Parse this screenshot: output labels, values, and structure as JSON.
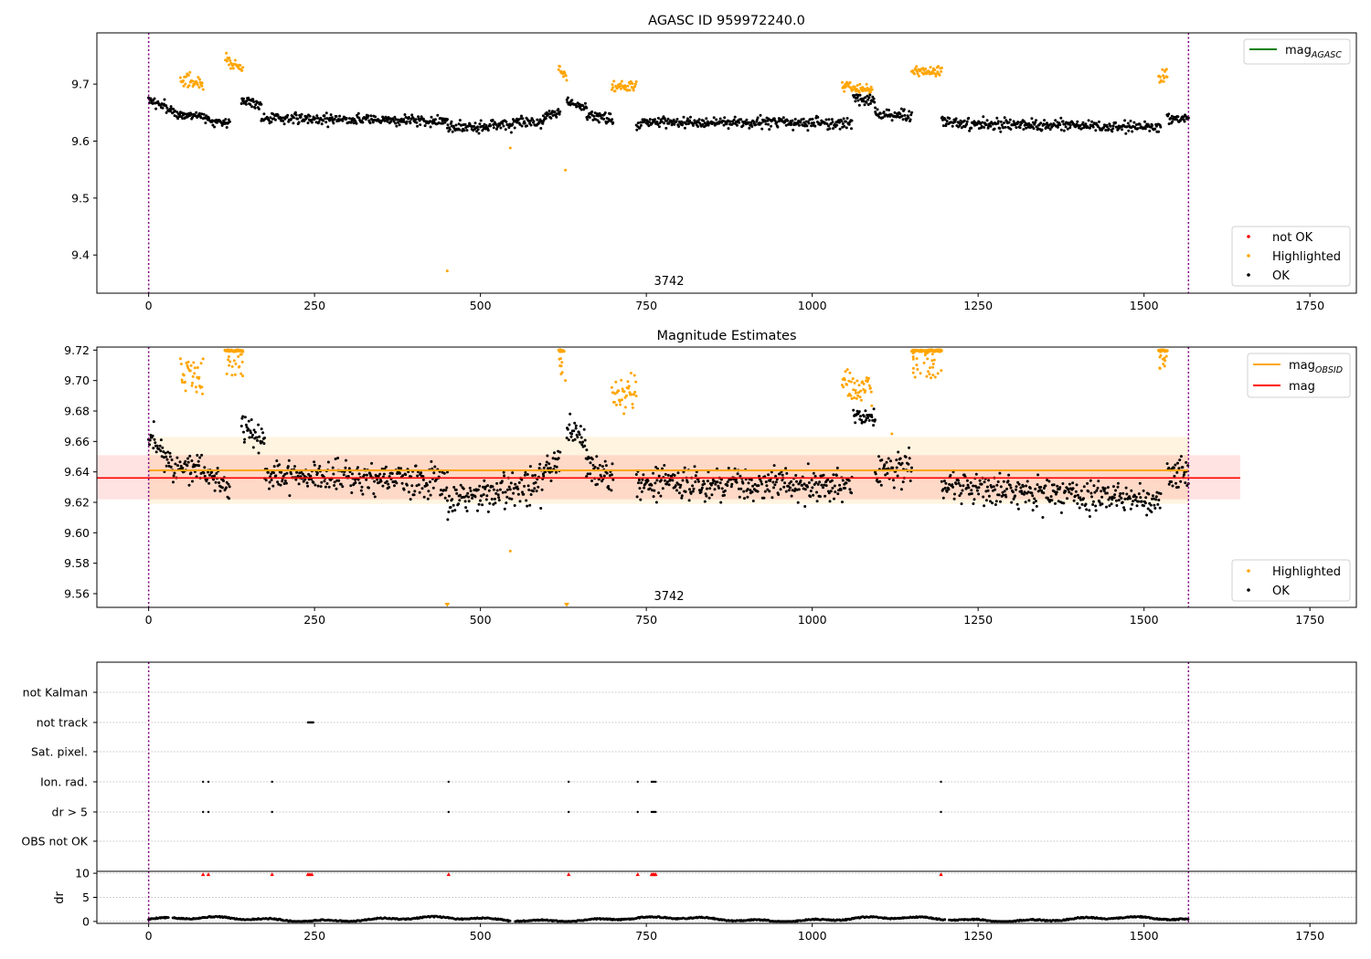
{
  "figure": {
    "colors": {
      "ok": "#000000",
      "highlighted": "#ffa500",
      "not_ok": "#ff0000",
      "agasc": "#008000",
      "obsid": "#ffa500",
      "mag": "#ff0000",
      "obsid_marker": "#800080"
    }
  },
  "chart_data": [
    {
      "id": "agasc_panel",
      "type": "scatter",
      "title": "AGASC ID 959972240.0",
      "xlim": [
        -78,
        1820
      ],
      "ylim": [
        9.333,
        9.79
      ],
      "x_ticks": [
        0,
        250,
        500,
        750,
        1000,
        1250,
        1500,
        1750
      ],
      "y_ticks": [
        9.4,
        9.5,
        9.6,
        9.7
      ],
      "obsid_label": "3742",
      "obsid_bounds": [
        0,
        1567
      ],
      "legend_top": {
        "position": "top-right",
        "entries": [
          {
            "label": "mag",
            "subscript": "AGASC"
          }
        ]
      },
      "legend_bottom": {
        "position": "bottom-right",
        "entries": [
          {
            "label": "not OK"
          },
          {
            "label": "Highlighted"
          },
          {
            "label": "OK"
          }
        ]
      },
      "segments": [
        {
          "x": [
            0,
            40
          ],
          "mean": 9.662,
          "trend": -0.02,
          "noise": 0.009,
          "status": "ok"
        },
        {
          "x": [
            42,
            80
          ],
          "mean": 9.645,
          "trend": 0.0,
          "noise": 0.008,
          "status": "ok"
        },
        {
          "x": [
            48,
            82
          ],
          "mean": 9.705,
          "trend": -0.01,
          "noise": 0.01,
          "status": "highlighted"
        },
        {
          "x": [
            82,
            122
          ],
          "mean": 9.636,
          "trend": -0.01,
          "noise": 0.008,
          "status": "ok"
        },
        {
          "x": [
            116,
            142
          ],
          "mean": 9.735,
          "trend": -0.01,
          "noise": 0.01,
          "status": "highlighted"
        },
        {
          "x": [
            140,
            170
          ],
          "mean": 9.668,
          "trend": -0.01,
          "noise": 0.008,
          "status": "ok"
        },
        {
          "x": [
            170,
            450
          ],
          "mean": 9.638,
          "trend": -0.006,
          "noise": 0.009,
          "status": "ok"
        },
        {
          "x": [
            450,
            595
          ],
          "mean": 9.628,
          "trend": 0.01,
          "noise": 0.01,
          "status": "ok"
        },
        {
          "x": [
            595,
            620
          ],
          "mean": 9.646,
          "trend": 0.01,
          "noise": 0.009,
          "status": "ok"
        },
        {
          "x": [
            618,
            630
          ],
          "mean": 9.72,
          "trend": -0.02,
          "noise": 0.012,
          "status": "highlighted"
        },
        {
          "x": [
            630,
            660
          ],
          "mean": 9.664,
          "trend": -0.01,
          "noise": 0.008,
          "status": "ok"
        },
        {
          "x": [
            660,
            700
          ],
          "mean": 9.64,
          "trend": -0.01,
          "noise": 0.01,
          "status": "ok"
        },
        {
          "x": [
            698,
            735
          ],
          "mean": 9.695,
          "trend": 0.0,
          "noise": 0.008,
          "status": "highlighted"
        },
        {
          "x": [
            735,
            1060
          ],
          "mean": 9.632,
          "trend": 0.0,
          "noise": 0.009,
          "status": "ok"
        },
        {
          "x": [
            1045,
            1090
          ],
          "mean": 9.693,
          "trend": -0.005,
          "noise": 0.008,
          "status": "highlighted"
        },
        {
          "x": [
            1062,
            1095
          ],
          "mean": 9.672,
          "trend": -0.005,
          "noise": 0.009,
          "status": "ok"
        },
        {
          "x": [
            1095,
            1150
          ],
          "mean": 9.645,
          "trend": 0.0,
          "noise": 0.009,
          "status": "ok"
        },
        {
          "x": [
            1150,
            1195
          ],
          "mean": 9.722,
          "trend": 0.0,
          "noise": 0.009,
          "status": "highlighted"
        },
        {
          "x": [
            1195,
            1525
          ],
          "mean": 9.628,
          "trend": -0.008,
          "noise": 0.009,
          "status": "ok"
        },
        {
          "x": [
            1522,
            1535
          ],
          "mean": 9.715,
          "trend": 0.01,
          "noise": 0.01,
          "status": "highlighted"
        },
        {
          "x": [
            1535,
            1567
          ],
          "mean": 9.64,
          "trend": 0.0,
          "noise": 0.01,
          "status": "ok"
        }
      ],
      "outliers": [
        {
          "x": 450,
          "y": 9.372
        },
        {
          "x": 628,
          "y": 9.549
        },
        {
          "x": 545,
          "y": 9.588
        }
      ]
    },
    {
      "id": "estimates_panel",
      "type": "scatter",
      "title": "Magnitude Estimates",
      "xlim": [
        -78,
        1820
      ],
      "ylim": [
        9.551,
        9.722
      ],
      "x_ticks": [
        0,
        250,
        500,
        750,
        1000,
        1250,
        1500,
        1750
      ],
      "y_ticks": [
        9.56,
        9.58,
        9.6,
        9.62,
        9.64,
        9.66,
        9.68,
        9.7,
        9.72
      ],
      "y_tick_labels": [
        "9.56",
        "9.58",
        "9.60",
        "9.62",
        "9.64",
        "9.66",
        "9.68",
        "9.70",
        "9.72"
      ],
      "obsid_label": "3742",
      "obsid_bounds": [
        0,
        1567
      ],
      "mag_obsid": {
        "value": 9.641,
        "band": [
          9.619,
          9.663
        ],
        "x": [
          0,
          1567
        ]
      },
      "mag": {
        "value": 9.636,
        "band": [
          9.622,
          9.651
        ],
        "x": [
          -78,
          1645
        ]
      },
      "legend_top": {
        "position": "top-right",
        "entries": [
          {
            "label": "mag",
            "subscript": "OBSID"
          },
          {
            "label": "mag"
          }
        ]
      },
      "legend_bottom": {
        "position": "bottom-right",
        "entries": [
          {
            "label": "Highlighted"
          },
          {
            "label": "OK"
          }
        ]
      },
      "segments": [
        {
          "x": [
            0,
            40
          ],
          "mean": 9.654,
          "trend": -0.025,
          "noise": 0.01,
          "status": "ok"
        },
        {
          "x": [
            42,
            80
          ],
          "mean": 9.642,
          "trend": 0.0,
          "noise": 0.009,
          "status": "ok"
        },
        {
          "x": [
            48,
            82
          ],
          "mean": 9.703,
          "trend": -0.012,
          "noise": 0.011,
          "status": "highlighted"
        },
        {
          "x": [
            82,
            122
          ],
          "mean": 9.634,
          "trend": -0.01,
          "noise": 0.009,
          "status": "ok"
        },
        {
          "x": [
            140,
            175
          ],
          "mean": 9.665,
          "trend": -0.012,
          "noise": 0.009,
          "status": "ok"
        },
        {
          "x": [
            175,
            450
          ],
          "mean": 9.636,
          "trend": -0.006,
          "noise": 0.01,
          "status": "ok"
        },
        {
          "x": [
            450,
            595
          ],
          "mean": 9.626,
          "trend": 0.012,
          "noise": 0.011,
          "status": "ok"
        },
        {
          "x": [
            595,
            620
          ],
          "mean": 9.645,
          "trend": 0.01,
          "noise": 0.01,
          "status": "ok"
        },
        {
          "x": [
            630,
            660
          ],
          "mean": 9.664,
          "trend": -0.012,
          "noise": 0.009,
          "status": "ok"
        },
        {
          "x": [
            660,
            700
          ],
          "mean": 9.64,
          "trend": -0.01,
          "noise": 0.011,
          "status": "ok"
        },
        {
          "x": [
            698,
            735
          ],
          "mean": 9.692,
          "trend": 0.0,
          "noise": 0.01,
          "status": "highlighted"
        },
        {
          "x": [
            735,
            1060
          ],
          "mean": 9.632,
          "trend": 0.0,
          "noise": 0.01,
          "status": "ok"
        },
        {
          "x": [
            1045,
            1090
          ],
          "mean": 9.694,
          "trend": -0.005,
          "noise": 0.009,
          "status": "highlighted"
        },
        {
          "x": [
            1062,
            1095
          ],
          "mean": 9.676,
          "trend": -0.005,
          "noise": 0.006,
          "status": "ok"
        },
        {
          "x": [
            1095,
            1150
          ],
          "mean": 9.642,
          "trend": 0.0,
          "noise": 0.01,
          "status": "ok"
        },
        {
          "x": [
            1195,
            1525
          ],
          "mean": 9.626,
          "trend": -0.01,
          "noise": 0.01,
          "status": "ok"
        },
        {
          "x": [
            1535,
            1567
          ],
          "mean": 9.638,
          "trend": 0.0,
          "noise": 0.011,
          "status": "ok"
        }
      ],
      "clipped_top": [
        {
          "x": [
            115,
            142
          ]
        },
        {
          "x": [
            618,
            626
          ]
        },
        {
          "x": [
            1150,
            1195
          ]
        },
        {
          "x": [
            1522,
            1535
          ]
        }
      ],
      "clipped_bottom": [
        {
          "x": 450
        },
        {
          "x": 630
        }
      ],
      "outliers": [
        {
          "x": 545,
          "y": 9.588
        },
        {
          "x": 628,
          "y": 9.7
        },
        {
          "x": 1120,
          "y": 9.665
        }
      ]
    },
    {
      "id": "flags_panel",
      "type": "scatter",
      "xlim": [
        -78,
        1820
      ],
      "categories": [
        "not Kalman",
        "not track",
        "Sat. pixel.",
        "Ion. rad.",
        "dr > 5",
        "OBS not OK"
      ],
      "flag_points": {
        "not track": [
          240,
          241,
          242,
          243,
          244,
          245,
          246,
          247,
          248
        ],
        "Ion. rad.": [
          82,
          90,
          186,
          452,
          633,
          737,
          758,
          760,
          762,
          764,
          1194
        ],
        "dr > 5": [
          82,
          90,
          186,
          452,
          633,
          737,
          758,
          760,
          762,
          764,
          1194
        ]
      },
      "obsid_bounds": [
        0,
        1567
      ]
    },
    {
      "id": "dr_panel",
      "type": "scatter",
      "ylabel": "dr",
      "xlim": [
        -78,
        1820
      ],
      "ylim": [
        -0.4,
        10.4
      ],
      "y_ticks": [
        0,
        5,
        10
      ],
      "x_ticks": [
        0,
        250,
        500,
        750,
        1000,
        1250,
        1500,
        1750
      ],
      "clipped_points": [
        82,
        90,
        186,
        240,
        243,
        246,
        452,
        633,
        737,
        758,
        760,
        762,
        764,
        1194
      ],
      "obsid_bounds": [
        0,
        1567
      ]
    }
  ]
}
